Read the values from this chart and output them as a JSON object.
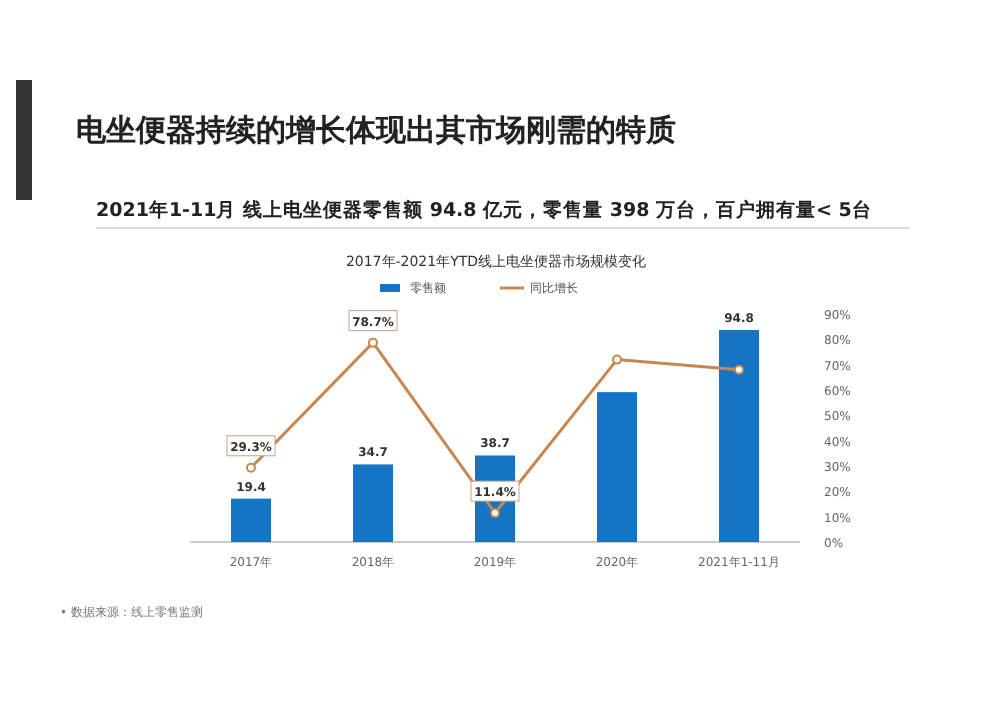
{
  "chart_data": {
    "type": "bar",
    "title": "电坐便器持续的增长体现出其市场刚需的特质",
    "subtitle": "2021年1-11月 线上电坐便器零售额 94.8 亿元，零售量 398 万台，百户拥有量< 5台",
    "annotations": [
      "2017年-2021年YTD线上电坐便器市场规模变化",
      "• 数据来源：线上零售监测"
    ],
    "categories": [
      "2017年",
      "2018年",
      "2019年",
      "2020年",
      "2021年1-11月"
    ],
    "series": [
      {
        "name": "零售额",
        "color": "#1574c4",
        "values": [
          19.4,
          34.7,
          38.7,
          67,
          94.8
        ],
        "value_labels": [
          "19.4",
          "34.7",
          "38.7",
          null,
          "94.8"
        ]
      },
      {
        "name": "同比增长",
        "type": "line",
        "axis": "y2",
        "color": "#c8874f",
        "values": [
          29.3,
          78.7,
          11.4,
          72,
          68
        ],
        "value_labels": [
          "29.3%",
          "78.7%",
          "11.4%",
          null,
          null
        ]
      }
    ],
    "y2lim": [
      0,
      90
    ],
    "y2ticks": [
      {
        "value": 0,
        "label": "0%"
      },
      {
        "value": 10,
        "label": "10%"
      },
      {
        "value": 20,
        "label": "20%"
      },
      {
        "value": 30,
        "label": "30%"
      },
      {
        "value": 40,
        "label": "40%"
      },
      {
        "value": 50,
        "label": "50%"
      },
      {
        "value": 60,
        "label": "60%"
      },
      {
        "value": 70,
        "label": "70%"
      },
      {
        "value": 80,
        "label": "80%"
      },
      {
        "value": 90,
        "label": "90%"
      }
    ],
    "legend": "top",
    "marker": "circle"
  }
}
